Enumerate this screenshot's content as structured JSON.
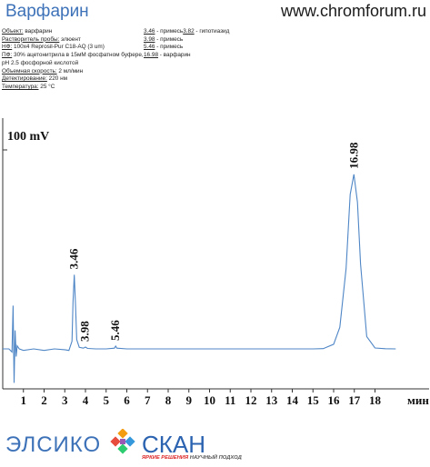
{
  "header": {
    "title": "Варфарин",
    "site": "www.chromforum.ru"
  },
  "conditions": [
    {
      "label": "Объект:",
      "value": " варфарин"
    },
    {
      "label": "Растворитель пробы:",
      "value": " элюент"
    },
    {
      "label": "НФ:",
      "value": " 100x4 Reprosil-Pur C18-AQ  (3 um)"
    },
    {
      "label": "ПФ:",
      "value": " 30% ацетонитрила в 15мМ фосфатном буфере, pH 2.5 фосфорной кислотой"
    },
    {
      "label": "Объемная скорость:",
      "value": " 2 мл/мин"
    },
    {
      "label": "Детектирование:",
      "value": " 220 нм"
    },
    {
      "label": "Температура:",
      "value": " 25 °С"
    }
  ],
  "peak_table": [
    {
      "time": "3.46",
      "name": " - примесь",
      "time2": "3.82",
      "name2": " - гипотиазид"
    },
    {
      "time": "3.98",
      "name": " - примесь"
    },
    {
      "time": "5.46",
      "name": " - примесь"
    },
    {
      "time": "16.98",
      "name": " - варфарин"
    }
  ],
  "chart_data": {
    "type": "line",
    "scale_label": "100 mV",
    "x_unit_label": "мин",
    "x_ticks": [
      "1",
      "2",
      "3",
      "4",
      "5",
      "6",
      "7",
      "8",
      "9",
      "10",
      "11",
      "12",
      "13",
      "14",
      "15",
      "16",
      "17",
      "18"
    ],
    "xlim": [
      0,
      19
    ],
    "ylim": [
      -20,
      145
    ],
    "color": "#4f86c6",
    "series": [
      {
        "x": [
          0,
          0.3,
          0.45,
          0.5,
          0.55,
          0.6,
          0.65,
          0.7,
          0.8,
          1.0,
          1.5,
          2.0,
          2.5,
          3.0,
          3.2,
          3.35,
          3.4,
          3.46,
          3.52,
          3.58,
          3.7,
          3.9,
          4.0,
          4.1,
          4.5,
          5.0,
          5.4,
          5.46,
          5.52,
          6,
          8,
          10,
          12,
          14,
          15,
          15.5,
          16.0,
          16.3,
          16.6,
          16.8,
          16.98,
          17.15,
          17.3,
          17.6,
          18.0,
          18.5,
          19.0
        ],
        "y": [
          0,
          0,
          -2,
          28,
          -22,
          12,
          -5,
          2,
          0,
          -1,
          0,
          -1,
          0,
          -0.5,
          -1,
          5,
          30,
          48,
          28,
          6,
          1,
          0.5,
          1.2,
          0.3,
          0,
          0,
          0.5,
          1.8,
          0.5,
          0,
          0,
          0,
          0,
          0,
          0,
          0.2,
          3,
          14,
          52,
          100,
          113,
          95,
          55,
          8,
          0.6,
          0.1,
          0
        ]
      }
    ],
    "peak_labels": [
      {
        "x": 3.46,
        "y": 48,
        "text": "3.46"
      },
      {
        "x": 3.98,
        "y": 1.2,
        "text": "3.98"
      },
      {
        "x": 5.46,
        "y": 1.8,
        "text": "5.46"
      },
      {
        "x": 16.98,
        "y": 113,
        "text": "16.98"
      }
    ]
  },
  "footer": {
    "brand1": "ЭЛСИКО",
    "brand2": "СКАН",
    "tagline_a": "ЯРКИЕ РЕШЕНИЯ",
    "tagline_b": " НАУЧНЫЙ ПОДХОД"
  }
}
